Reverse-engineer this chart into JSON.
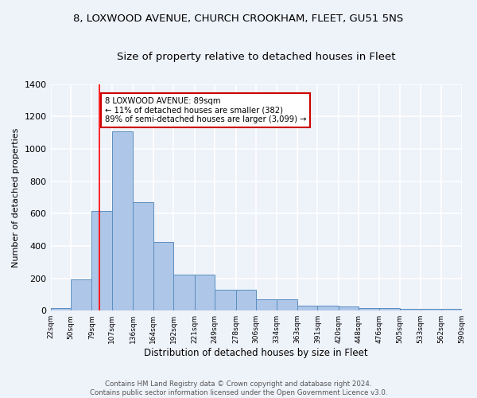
{
  "title1": "8, LOXWOOD AVENUE, CHURCH CROOKHAM, FLEET, GU51 5NS",
  "title2": "Size of property relative to detached houses in Fleet",
  "xlabel": "Distribution of detached houses by size in Fleet",
  "ylabel": "Number of detached properties",
  "bar_values": [
    15,
    195,
    615,
    1110,
    670,
    425,
    220,
    220,
    130,
    130,
    70,
    70,
    30,
    30,
    25,
    15,
    15,
    10,
    10,
    10
  ],
  "bin_edges": [
    22,
    50,
    79,
    107,
    136,
    164,
    192,
    221,
    249,
    278,
    306,
    334,
    363,
    391,
    420,
    448,
    476,
    505,
    533,
    562,
    590
  ],
  "tick_labels": [
    "22sqm",
    "50sqm",
    "79sqm",
    "107sqm",
    "136sqm",
    "164sqm",
    "192sqm",
    "221sqm",
    "249sqm",
    "278sqm",
    "306sqm",
    "334sqm",
    "363sqm",
    "391sqm",
    "420sqm",
    "448sqm",
    "476sqm",
    "505sqm",
    "533sqm",
    "562sqm",
    "590sqm"
  ],
  "bar_color": "#aec6e8",
  "bar_edge_color": "#5a8fc0",
  "red_line_x": 89,
  "annotation_text": "8 LOXWOOD AVENUE: 89sqm\n← 11% of detached houses are smaller (382)\n89% of semi-detached houses are larger (3,099) →",
  "annotation_box_color": "#ffffff",
  "annotation_box_edge": "#cc0000",
  "ylim": [
    0,
    1400
  ],
  "yticks": [
    0,
    200,
    400,
    600,
    800,
    1000,
    1200,
    1400
  ],
  "footer1": "Contains HM Land Registry data © Crown copyright and database right 2024.",
  "footer2": "Contains public sector information licensed under the Open Government Licence v3.0.",
  "bg_color": "#eef2f9",
  "grid_color": "#ffffff",
  "title1_fontsize": 9.5,
  "title2_fontsize": 9.5
}
